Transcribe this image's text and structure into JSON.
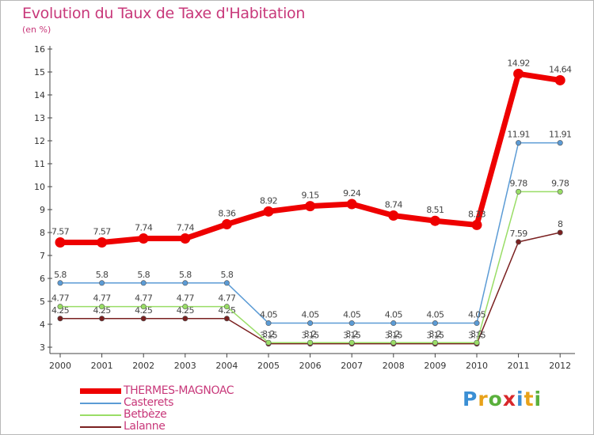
{
  "chart_data": {
    "type": "line",
    "title": "Evolution du Taux de Taxe d'Habitation",
    "ylabel": "(en %)",
    "xlabel": "",
    "x": [
      "2000",
      "2001",
      "2002",
      "2003",
      "2004",
      "2005",
      "2006",
      "2007",
      "2008",
      "2009",
      "2010",
      "2011",
      "2012"
    ],
    "ylim": [
      3,
      16
    ],
    "yticks": [
      3,
      4,
      5,
      6,
      7,
      8,
      9,
      10,
      11,
      12,
      13,
      14,
      15,
      16
    ],
    "grid": false,
    "legend_position": "bottom-left",
    "series": [
      {
        "name": "THERMES-MAGNOAC",
        "color": "#ee0000",
        "values": [
          7.57,
          7.57,
          7.74,
          7.74,
          8.36,
          8.92,
          9.15,
          9.24,
          8.74,
          8.51,
          8.33,
          14.92,
          14.64
        ],
        "labels": [
          "7.57",
          "7.57",
          "7.74",
          "7.74",
          "8.36",
          "8.92",
          "9.15",
          "9.24",
          "8.74",
          "8.51",
          "8.33",
          "14.92",
          "14.64"
        ]
      },
      {
        "name": "Casterets",
        "color": "#5b9bd5",
        "values": [
          5.8,
          5.8,
          5.8,
          5.8,
          5.8,
          4.05,
          4.05,
          4.05,
          4.05,
          4.05,
          4.05,
          11.91,
          11.91
        ],
        "labels": [
          "5.8",
          "5.8",
          "5.8",
          "5.8",
          "5.8",
          "4.05",
          "4.05",
          "4.05",
          "4.05",
          "4.05",
          "4.05",
          "11.91",
          "11.91"
        ]
      },
      {
        "name": "Betbèze",
        "color": "#99dd66",
        "values": [
          4.77,
          4.77,
          4.77,
          4.77,
          4.77,
          3.2,
          3.2,
          3.2,
          3.2,
          3.2,
          3.2,
          9.78,
          9.78
        ],
        "labels": [
          "4.77",
          "4.77",
          "4.77",
          "4.77",
          "4.77",
          "3.2",
          "3.2",
          "3.2",
          "3.2",
          "3.2",
          "3.2",
          "9.78",
          "9.78"
        ]
      },
      {
        "name": "Lalanne",
        "color": "#7a2020",
        "values": [
          4.25,
          4.25,
          4.25,
          4.25,
          4.25,
          3.15,
          3.15,
          3.15,
          3.15,
          3.15,
          3.15,
          7.59,
          8
        ],
        "labels": [
          "4.25",
          "4.25",
          "4.25",
          "4.25",
          "4.25",
          "3.15",
          "3.15",
          "3.15",
          "3.15",
          "3.15",
          "3.15",
          "7.59",
          "8"
        ]
      }
    ]
  },
  "brand": {
    "letters": [
      "P",
      "r",
      "o",
      "x",
      "i",
      "t",
      "i"
    ],
    "colors": [
      "#3b8fd4",
      "#e8a21a",
      "#5ab03c",
      "#d8282b",
      "#3b8fd4",
      "#e8a21a",
      "#5ab03c"
    ]
  }
}
